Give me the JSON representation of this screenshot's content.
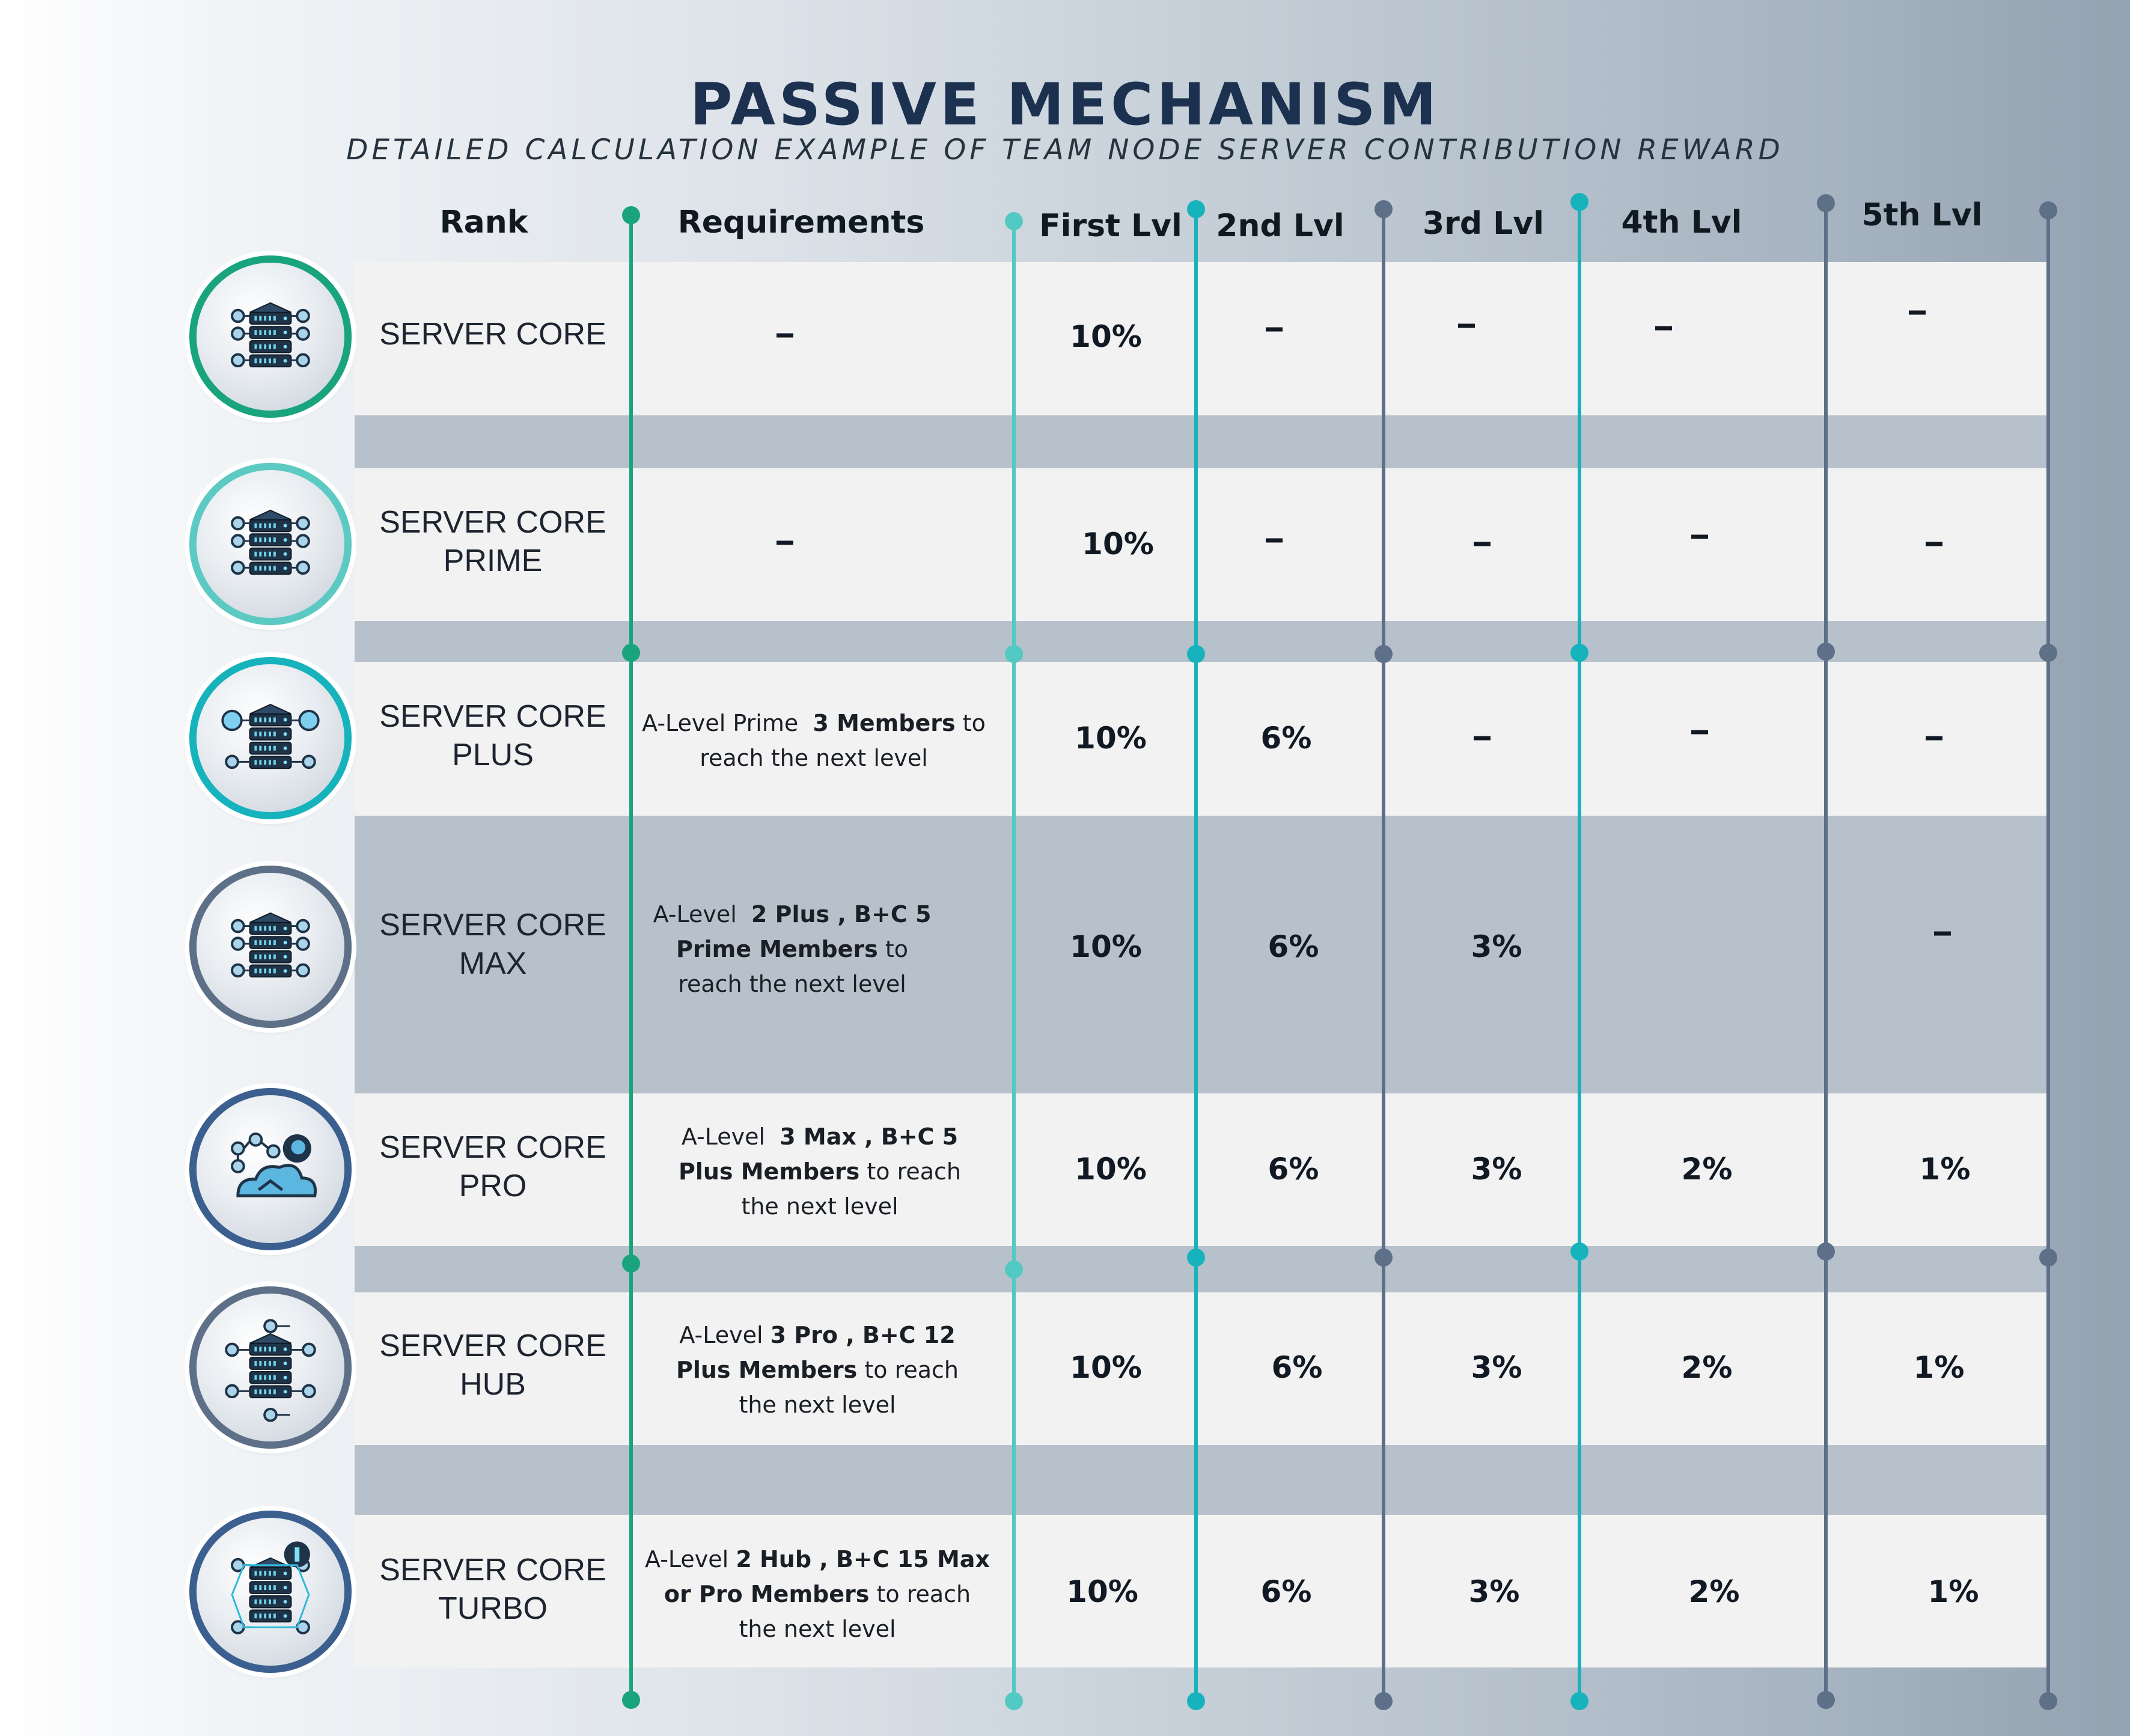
{
  "title": "PASSIVE MECHANISM",
  "subtitle": "DETAILED CALCULATION EXAMPLE OF TEAM NODE SERVER CONTRIBUTION REWARD",
  "headers": {
    "rank": "Rank",
    "requirements": "Requirements",
    "lvl1": "First Lvl",
    "lvl2": "2nd Lvl",
    "lvl3": "3rd Lvl",
    "lvl4": "4th Lvl",
    "lvl5": "5th Lvl"
  },
  "colors": {
    "title": "#1c3150",
    "band_light": "#f3f2f2",
    "band_mid": "#b6c1cb",
    "green": "#19a47d",
    "teal_light": "#52c9c2",
    "teal": "#17b3bd",
    "slate": "#5e7088"
  },
  "rows": [
    {
      "rank_line1": "SERVER CORE",
      "rank_line2": "",
      "badge_icon": "server-network-icon",
      "badge_color": "#19a47d",
      "requirement": {
        "text": "–",
        "parts": []
      },
      "lvl1": "10%",
      "lvl2": "–",
      "lvl3": "–",
      "lvl4": "–",
      "lvl5": "–"
    },
    {
      "rank_line1": "SERVER CORE",
      "rank_line2": "PRIME",
      "badge_icon": "server-network-icon",
      "badge_color": "#5ccac2",
      "requirement": {
        "text": "–",
        "parts": []
      },
      "lvl1": "10%",
      "lvl2": "–",
      "lvl3": "–",
      "lvl4": "–",
      "lvl5": "–"
    },
    {
      "rank_line1": "SERVER CORE",
      "rank_line2": "PLUS",
      "badge_icon": "server-lightbulb-icon",
      "badge_color": "#17b3bd",
      "requirement": {
        "parts": [
          {
            "text": "A-Level Prime  ",
            "bold": false
          },
          {
            "text": "3 Members",
            "bold": true
          },
          {
            "text": " to",
            "bold": false
          },
          {
            "br": true
          },
          {
            "text": "reach the next level",
            "bold": false
          }
        ]
      },
      "lvl1": "10%",
      "lvl2": "6%",
      "lvl3": "–",
      "lvl4": "–",
      "lvl5": "–"
    },
    {
      "rank_line1": "SERVER CORE",
      "rank_line2": "MAX",
      "badge_icon": "server-stack-icon",
      "badge_color": "#5e7088",
      "requirement": {
        "parts": [
          {
            "text": "A-Level  ",
            "bold": false
          },
          {
            "text": "2 Plus , B+C 5",
            "bold": true
          },
          {
            "br": true
          },
          {
            "text": "Prime Members",
            "bold": true
          },
          {
            "text": " to",
            "bold": false
          },
          {
            "br": true
          },
          {
            "text": "reach the next level",
            "bold": false
          }
        ]
      },
      "lvl1": "10%",
      "lvl2": "6%",
      "lvl3": "3%",
      "lvl4": "",
      "lvl5": "–"
    },
    {
      "rank_line1": "SERVER CORE",
      "rank_line2": "PRO",
      "badge_icon": "cloud-network-icon",
      "badge_color": "#3b5f8e",
      "requirement": {
        "parts": [
          {
            "text": "A-Level  ",
            "bold": false
          },
          {
            "text": "3 Max , B+C 5",
            "bold": true
          },
          {
            "br": true
          },
          {
            "text": "Plus Members",
            "bold": true
          },
          {
            "text": " to reach",
            "bold": false
          },
          {
            "br": true
          },
          {
            "text": "the next level",
            "bold": false
          }
        ]
      },
      "lvl1": "10%",
      "lvl2": "6%",
      "lvl3": "3%",
      "lvl4": "2%",
      "lvl5": "1%"
    },
    {
      "rank_line1": "SERVER CORE",
      "rank_line2": "HUB",
      "badge_icon": "server-hub-icon",
      "badge_color": "#5e7088",
      "requirement": {
        "parts": [
          {
            "text": "A-Level ",
            "bold": false
          },
          {
            "text": "3 Pro , B+C 12",
            "bold": true
          },
          {
            "br": true
          },
          {
            "text": "Plus Members",
            "bold": true
          },
          {
            "text": " to reach",
            "bold": false
          },
          {
            "br": true
          },
          {
            "text": "the next level",
            "bold": false
          }
        ]
      },
      "lvl1": "10%",
      "lvl2": "6%",
      "lvl3": "3%",
      "lvl4": "2%",
      "lvl5": "1%"
    },
    {
      "rank_line1": "SERVER CORE",
      "rank_line2": "TURBO",
      "badge_icon": "server-turbo-icon",
      "badge_color": "#3b5f8e",
      "requirement": {
        "parts": [
          {
            "text": "A-Level ",
            "bold": false
          },
          {
            "text": "2 Hub , B+C 15 Max",
            "bold": true
          },
          {
            "br": true
          },
          {
            "text": "or Pro Members",
            "bold": true
          },
          {
            "text": " to reach",
            "bold": false
          },
          {
            "br": true
          },
          {
            "text": "the next level",
            "bold": false
          }
        ]
      },
      "lvl1": "10%",
      "lvl2": "6%",
      "lvl3": "3%",
      "lvl4": "2%",
      "lvl5": "1%"
    }
  ]
}
